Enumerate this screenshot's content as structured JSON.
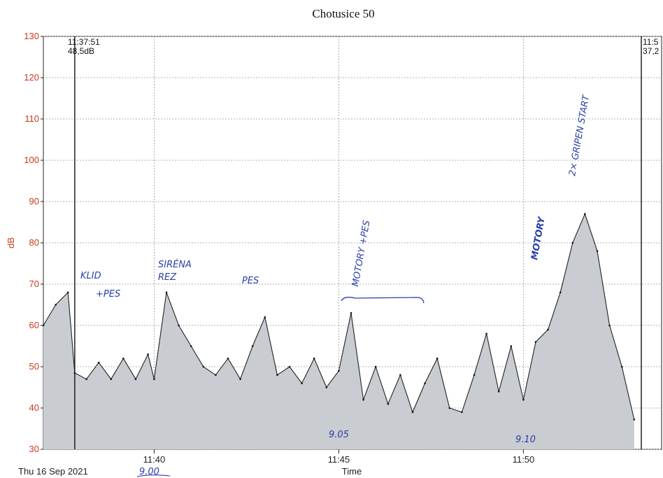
{
  "chart_data": {
    "type": "area",
    "title": "Chotusice 50",
    "ylabel": "dB",
    "xlabel": "Time",
    "date_label": "Thu 16 Sep 2021",
    "ylim": [
      30,
      130
    ],
    "yticks": [
      "130",
      "120",
      "110",
      "100",
      "90",
      "80",
      "70",
      "60",
      "50",
      "40",
      "30"
    ],
    "xticks": [
      "11:40",
      "11:45",
      "11:50"
    ],
    "grid": true,
    "cursor_left": {
      "time": "11:37:51",
      "level": "48,5dB"
    },
    "cursor_right": {
      "time": "11:5",
      "level": "37,2"
    },
    "series": [
      {
        "x": [
          "11:37:00",
          "11:37:20",
          "11:37:40",
          "11:37:51",
          "11:38:10",
          "11:38:30",
          "11:38:50",
          "11:39:10",
          "11:39:30",
          "11:39:50",
          "11:40:00",
          "11:40:20",
          "11:40:40",
          "11:41:00",
          "11:41:20",
          "11:41:40",
          "11:42:00",
          "11:42:20",
          "11:42:40",
          "11:43:00",
          "11:43:20",
          "11:43:40",
          "11:44:00",
          "11:44:20",
          "11:44:40",
          "11:45:00",
          "11:45:20",
          "11:45:40",
          "11:46:00",
          "11:46:20",
          "11:46:40",
          "11:47:00",
          "11:47:20",
          "11:47:40",
          "11:48:00",
          "11:48:20",
          "11:48:40",
          "11:49:00",
          "11:49:20",
          "11:49:40",
          "11:50:00",
          "11:50:20",
          "11:50:40",
          "11:51:00",
          "11:51:20",
          "11:51:40",
          "11:52:00",
          "11:52:20",
          "11:52:40",
          "11:53:00"
        ],
        "values": [
          60,
          65,
          68,
          48.5,
          47,
          51,
          47,
          52,
          47,
          53,
          47,
          68,
          60,
          55,
          50,
          48,
          52,
          47,
          55,
          62,
          48,
          50,
          46,
          52,
          45,
          49,
          63,
          42,
          50,
          41,
          48,
          39,
          46,
          52,
          40,
          39,
          48,
          58,
          44,
          55,
          42,
          56,
          59,
          68,
          80,
          87,
          78,
          60,
          50,
          37.2
        ]
      }
    ],
    "annotations": [
      "KLID",
      "+PES",
      "SIRÉNA",
      "REZ",
      "PES",
      "MOTORY +PES",
      "MOTORY",
      "2× GRIPEN START",
      "9.00",
      "9.05",
      "9.10"
    ]
  }
}
